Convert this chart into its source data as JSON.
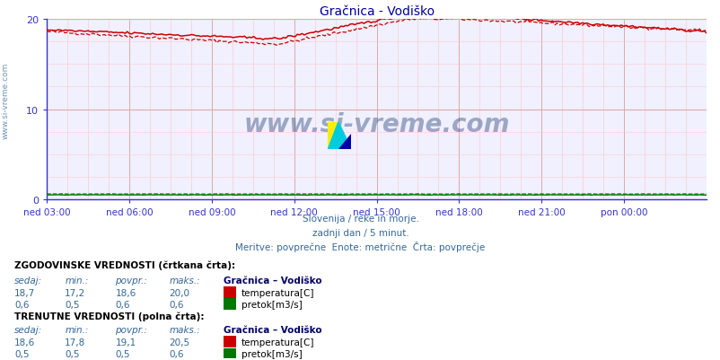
{
  "title": "Gračnica - Vodiško",
  "bg_color": "#ffffff",
  "plot_bg_color": "#f0f0ff",
  "grid_color_major": "#ddaaaa",
  "grid_color_minor": "#ffcccc",
  "x_labels": [
    "ned 03:00",
    "ned 06:00",
    "ned 09:00",
    "ned 12:00",
    "ned 15:00",
    "ned 18:00",
    "ned 21:00",
    "pon 00:00"
  ],
  "y_min": 0,
  "y_max": 20,
  "y_ticks": [
    0,
    10,
    20
  ],
  "subtitle1": "Slovenija / reke in morje.",
  "subtitle2": "zadnji dan / 5 minut.",
  "subtitle3": "Meritve: povprečne  Enote: metrične  Črta: povprečje",
  "watermark": "www.si-vreme.com",
  "temp_color": "#cc0000",
  "flow_color": "#007700",
  "axis_color": "#3333cc",
  "title_color": "#000099",
  "text_color": "#336699",
  "bold_color": "#000000",
  "station_color": "#000066",
  "n_points": 288,
  "sidebar_text": "www.si-vreme.com",
  "sidebar_color": "#336699"
}
